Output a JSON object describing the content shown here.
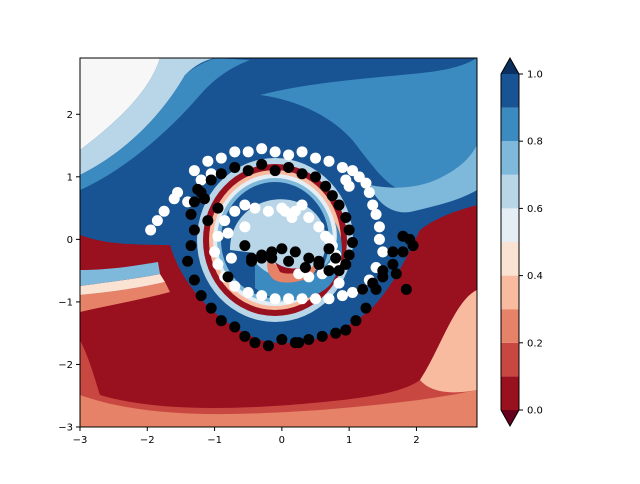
{
  "chart_data": {
    "type": "contour",
    "description_title": "",
    "xlabel": "",
    "ylabel": "",
    "xlim": [
      -3,
      2.9
    ],
    "ylim": [
      -3,
      2.9
    ],
    "x_ticks": [
      {
        "value": -3,
        "label": "−3"
      },
      {
        "value": -2,
        "label": "−2"
      },
      {
        "value": -1,
        "label": "−1"
      },
      {
        "value": 0,
        "label": "0"
      },
      {
        "value": 1,
        "label": "1"
      },
      {
        "value": 2,
        "label": "2"
      }
    ],
    "y_ticks": [
      {
        "value": -3,
        "label": "−3"
      },
      {
        "value": -2,
        "label": "−2"
      },
      {
        "value": -1,
        "label": "−1"
      },
      {
        "value": 0,
        "label": "0"
      },
      {
        "value": 1,
        "label": "1"
      },
      {
        "value": 2,
        "label": "2"
      }
    ],
    "colorbar": {
      "levels": [
        0.0,
        0.1,
        0.2,
        0.3,
        0.4,
        0.5,
        0.6,
        0.7,
        0.8,
        0.9,
        1.0
      ],
      "colors": [
        "#99101f",
        "#c94741",
        "#e58268",
        "#f8bba0",
        "#fbe3d4",
        "#e4eef4",
        "#b8d6e8",
        "#7eb8da",
        "#3c8bc0",
        "#185493"
      ],
      "extend_low_color": "#67001f",
      "extend_high_color": "#0b2f5e",
      "ticks": [
        {
          "value": 0.0,
          "label": "0.0"
        },
        {
          "value": 0.2,
          "label": "0.2"
        },
        {
          "value": 0.4,
          "label": "0.4"
        },
        {
          "value": 0.6,
          "label": "0.6"
        },
        {
          "value": 0.8,
          "label": "0.8"
        },
        {
          "value": 1.0,
          "label": "1.0"
        }
      ]
    },
    "series": [
      {
        "color": "#ffffff",
        "x": [
          -1.3,
          -1.1,
          -0.9,
          -0.7,
          -0.5,
          -0.3,
          -0.1,
          0.1,
          0.3,
          0.5,
          0.7,
          0.9,
          1.05,
          1.15,
          1.25,
          1.3,
          1.35,
          1.4,
          1.45,
          1.45,
          1.5,
          1.4,
          1.3,
          1.2,
          1.05,
          0.9,
          0.7,
          0.5,
          0.3,
          0.1,
          -0.1,
          -0.3,
          -0.5,
          -0.7,
          -0.85,
          -0.95,
          -1.0,
          -0.95,
          -0.85,
          -0.7,
          -0.55,
          -0.4,
          -0.2,
          0.0,
          0.2,
          0.4,
          0.55,
          0.65,
          0.75,
          0.8,
          0.8,
          0.75,
          0.6,
          0.4,
          0.25,
          0.15,
          0.05,
          -1.6,
          -1.75,
          -1.85,
          -1.95,
          -1.55,
          -1.4,
          -1.2,
          -1.05,
          0.95,
          1.0,
          0.85,
          0.3,
          0.7,
          -0.55,
          -0.75,
          -0.8
        ],
        "y": [
          1.1,
          1.25,
          1.3,
          1.4,
          1.4,
          1.45,
          1.4,
          1.35,
          1.4,
          1.3,
          1.25,
          1.15,
          1.1,
          1.0,
          0.9,
          0.75,
          0.55,
          0.4,
          0.2,
          0.0,
          -0.2,
          -0.45,
          -0.65,
          -0.8,
          -0.85,
          -0.9,
          -0.95,
          -0.95,
          -0.95,
          -0.95,
          -0.95,
          -0.9,
          -0.85,
          -0.75,
          -0.6,
          -0.4,
          -0.2,
          0.05,
          0.3,
          0.45,
          0.55,
          0.5,
          0.45,
          0.5,
          0.45,
          0.35,
          0.2,
          0.05,
          -0.1,
          -0.25,
          -0.35,
          -0.45,
          -0.55,
          -0.6,
          -0.55,
          0.35,
          0.45,
          0.65,
          0.45,
          0.3,
          0.15,
          0.75,
          0.6,
          0.95,
          1.05,
          0.95,
          0.85,
          -0.7,
          0.55,
          0.0,
          0.2,
          -0.3,
          0.1
        ]
      },
      {
        "color": "#000000",
        "x": [
          -1.2,
          -1.05,
          -0.9,
          -0.7,
          -0.5,
          -0.3,
          -0.1,
          0.1,
          0.3,
          0.5,
          0.65,
          0.75,
          0.85,
          0.95,
          1.0,
          1.05,
          1.0,
          0.95,
          0.85,
          0.7,
          0.55,
          0.4,
          0.2,
          0.0,
          -0.15,
          -0.3,
          -0.45,
          -0.55,
          -0.45,
          -0.3,
          -0.15,
          0.1,
          0.35,
          0.55,
          0.7,
          0.8,
          1.2,
          1.35,
          1.5,
          1.65,
          1.8,
          1.9,
          1.95,
          1.8,
          1.65,
          1.5,
          1.4,
          1.25,
          1.1,
          0.95,
          0.8,
          0.6,
          0.4,
          0.2,
          0.0,
          -0.2,
          -0.4,
          -0.55,
          -0.7,
          -0.9,
          -1.05,
          -1.2,
          -1.3,
          -1.4,
          -1.35,
          -1.3,
          -1.35,
          -1.3,
          -1.25,
          -1.15,
          1.85,
          1.7,
          0.25,
          -1.1,
          -0.95,
          -0.8
        ],
        "y": [
          0.75,
          0.95,
          1.05,
          1.15,
          1.1,
          1.2,
          1.1,
          1.15,
          1.05,
          1.0,
          0.85,
          0.7,
          0.55,
          0.35,
          0.15,
          -0.05,
          -0.25,
          -0.4,
          -0.5,
          -0.5,
          -0.4,
          -0.3,
          -0.2,
          -0.15,
          -0.2,
          -0.3,
          -0.3,
          -0.1,
          -0.35,
          -0.25,
          -0.3,
          -0.35,
          -0.45,
          -0.35,
          -0.15,
          -0.3,
          -0.8,
          -0.7,
          -0.6,
          -0.4,
          -0.2,
          0.0,
          -0.1,
          0.05,
          -0.2,
          -0.5,
          -0.8,
          -1.1,
          -1.3,
          -1.45,
          -1.5,
          -1.55,
          -1.6,
          -1.65,
          -1.6,
          -1.7,
          -1.65,
          -1.55,
          -1.4,
          -1.3,
          -1.1,
          -0.9,
          -0.65,
          -0.35,
          -0.1,
          0.15,
          0.4,
          0.6,
          0.8,
          0.65,
          -0.8,
          -0.55,
          -1.65,
          0.3,
          0.5,
          -0.6
        ]
      }
    ]
  }
}
